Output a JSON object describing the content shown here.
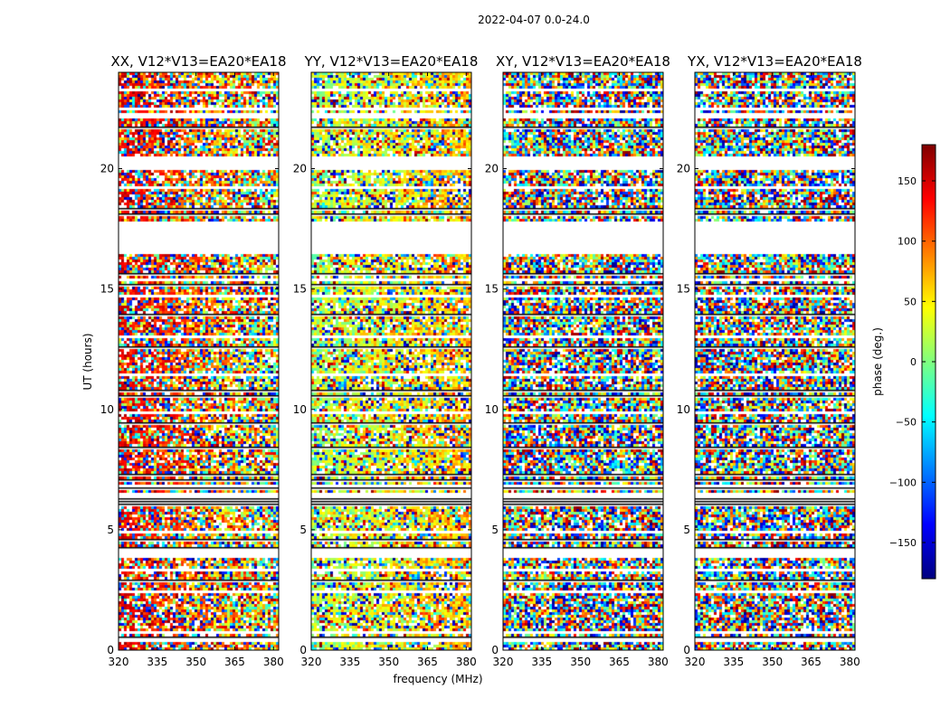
{
  "chart_data": {
    "type": "heatmap",
    "suptitle": "2022-04-07 0.0-24.0",
    "xlabel": "frequency (MHz)",
    "ylabel": "UT (hours)",
    "xlim": [
      320,
      382
    ],
    "ylim": [
      0,
      24
    ],
    "xticks": [
      320,
      335,
      350,
      365,
      380
    ],
    "yticks": [
      0,
      5,
      10,
      15,
      20
    ],
    "colorbar": {
      "label": "phase (deg.)",
      "range": [
        -180,
        180
      ],
      "ticks": [
        -150,
        -100,
        -50,
        0,
        50,
        100,
        150
      ],
      "colormap": "jet",
      "colors": [
        "#00007f",
        "#0000ff",
        "#007fff",
        "#00ffff",
        "#7fff7f",
        "#ffff00",
        "#ff7f00",
        "#ff0000",
        "#7f0000"
      ]
    },
    "gaps_hours": [
      [
        16.5,
        17.6
      ],
      [
        20.2,
        20.6
      ],
      [
        17.6,
        17.9
      ]
    ],
    "panels": [
      {
        "title": "XX, V12*V13=EA20*EA18",
        "style": "xx"
      },
      {
        "title": "YY, V12*V13=EA20*EA18",
        "style": "yy"
      },
      {
        "title": "XY, V12*V13=EA20*EA18",
        "style": "noise"
      },
      {
        "title": "YX, V12*V13=EA20*EA18",
        "style": "noise"
      }
    ]
  }
}
